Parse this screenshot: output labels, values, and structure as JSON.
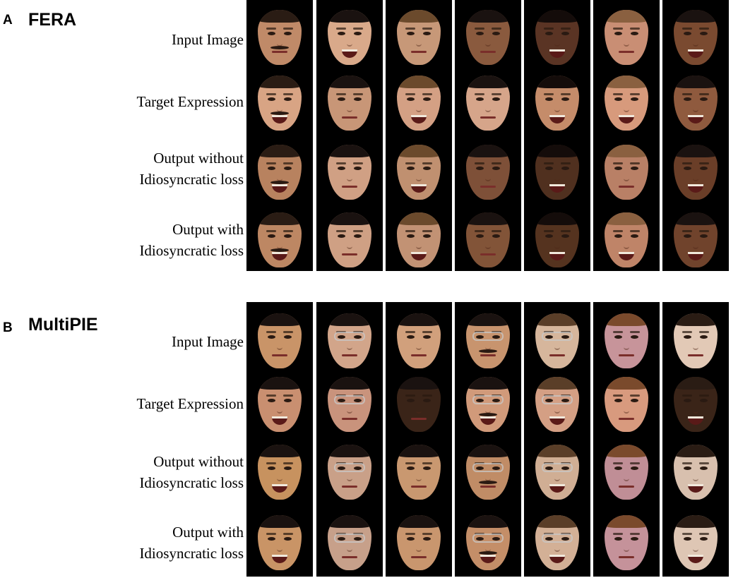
{
  "panels": [
    {
      "letter": "A",
      "name": "FERA",
      "rows": [
        [
          "Input Image"
        ],
        [
          "Target Expression"
        ],
        [
          "Output without",
          "Idiosyncratic loss"
        ],
        [
          "Output with",
          "Idiosyncratic loss"
        ]
      ],
      "columns": 7
    },
    {
      "letter": "B",
      "name": "MultiPIE",
      "rows": [
        [
          "Input Image"
        ],
        [
          "Target Expression"
        ],
        [
          "Output without",
          "Idiosyncratic loss"
        ],
        [
          "Output with",
          "Idiosyncratic loss"
        ]
      ],
      "columns": 7
    }
  ],
  "colors": {
    "background": "#ffffff",
    "column_background": "#000000",
    "text": "#000000"
  }
}
